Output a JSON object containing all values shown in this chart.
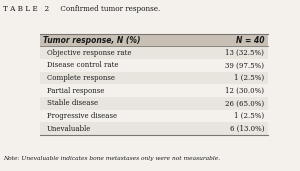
{
  "title": "T A B L E   2     Confirmed tumor response.",
  "header": [
    "Tumor response, N (%)",
    "N = 40"
  ],
  "rows": [
    [
      "Objective response rate",
      "13 (32.5%)"
    ],
    [
      "Disease control rate",
      "39 (97.5%)"
    ],
    [
      "Complete response",
      "1 (2.5%)"
    ],
    [
      "Partial response",
      "12 (30.0%)"
    ],
    [
      "Stable disease",
      "26 (65.0%)"
    ],
    [
      "Progressive disease",
      "1 (2.5%)"
    ],
    [
      "Unevaluable",
      "6 (13.0%)"
    ]
  ],
  "note": "Note: Unevaluable indicates bone metastases only were not measurable.",
  "header_bg": "#c9c0b5",
  "row_bg_alt": "#e8e4de",
  "row_bg_main": "#f4f1ed",
  "border_color": "#7a7570",
  "text_color": "#1a1a1a",
  "fig_bg": "#f4f1ed"
}
